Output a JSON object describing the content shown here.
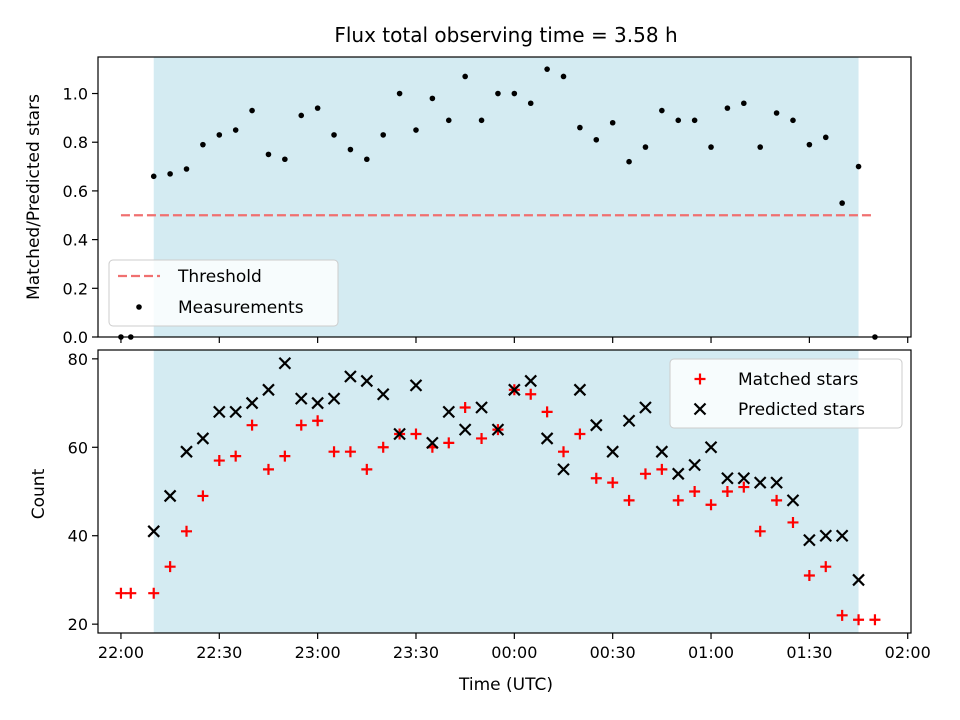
{
  "chart_data": [
    {
      "type": "scatter",
      "title": "Flux total observing time = 3.58 h",
      "ylabel": "Matched/Predicted stars",
      "ylim": [
        0,
        1.15
      ],
      "xlim": [
        "21:53",
        "02:01"
      ],
      "yticks": [
        "0.0",
        "0.2",
        "0.4",
        "0.6",
        "0.8",
        "1.0"
      ],
      "shaded_span": [
        "22:10",
        "01:45"
      ],
      "legend_position": "lower-left",
      "threshold": {
        "name": "Threshold",
        "value": 0.5,
        "x_range": [
          "22:00",
          "01:50"
        ],
        "color": "#f07070"
      },
      "series": [
        {
          "name": "Measurements",
          "color": "#000000",
          "x": [
            "22:00",
            "22:03",
            "22:10",
            "22:15",
            "22:20",
            "22:25",
            "22:30",
            "22:35",
            "22:40",
            "22:45",
            "22:50",
            "22:55",
            "23:00",
            "23:05",
            "23:10",
            "23:15",
            "23:20",
            "23:25",
            "23:30",
            "23:35",
            "23:40",
            "23:45",
            "23:50",
            "23:55",
            "00:00",
            "00:05",
            "00:10",
            "00:15",
            "00:20",
            "00:25",
            "00:30",
            "00:35",
            "00:40",
            "00:45",
            "00:50",
            "00:55",
            "01:00",
            "01:05",
            "01:10",
            "01:15",
            "01:20",
            "01:25",
            "01:30",
            "01:35",
            "01:40",
            "01:45",
            "01:50"
          ],
          "y": [
            0.0,
            0.0,
            0.66,
            0.67,
            0.69,
            0.79,
            0.83,
            0.85,
            0.93,
            0.75,
            0.73,
            0.91,
            0.94,
            0.83,
            0.77,
            0.73,
            0.83,
            1.0,
            0.85,
            0.98,
            0.89,
            1.07,
            0.89,
            1.0,
            1.0,
            0.96,
            1.1,
            1.07,
            0.86,
            0.81,
            0.88,
            0.72,
            0.78,
            0.93,
            0.89,
            0.89,
            0.78,
            0.94,
            0.96,
            0.78,
            0.92,
            0.89,
            0.79,
            0.82,
            0.55,
            0.7,
            0.0
          ]
        }
      ]
    },
    {
      "type": "scatter",
      "xlabel": "Time (UTC)",
      "ylabel": "Count",
      "ylim": [
        18,
        82
      ],
      "xlim": [
        "21:53",
        "02:01"
      ],
      "xticks": [
        "22:00",
        "22:30",
        "23:00",
        "23:30",
        "00:00",
        "00:30",
        "01:00",
        "01:30",
        "02:00"
      ],
      "yticks": [
        "20",
        "40",
        "60",
        "80"
      ],
      "shaded_span": [
        "22:10",
        "01:45"
      ],
      "legend_position": "top-right",
      "series": [
        {
          "name": "Matched stars",
          "marker": "plus",
          "color": "#ff0000",
          "x": [
            "22:00",
            "22:03",
            "22:10",
            "22:15",
            "22:20",
            "22:25",
            "22:30",
            "22:35",
            "22:40",
            "22:45",
            "22:50",
            "22:55",
            "23:00",
            "23:05",
            "23:10",
            "23:15",
            "23:20",
            "23:25",
            "23:30",
            "23:35",
            "23:40",
            "23:45",
            "23:50",
            "23:55",
            "00:00",
            "00:05",
            "00:10",
            "00:15",
            "00:20",
            "00:25",
            "00:30",
            "00:35",
            "00:40",
            "00:45",
            "00:50",
            "00:55",
            "01:00",
            "01:05",
            "01:10",
            "01:15",
            "01:20",
            "01:25",
            "01:30",
            "01:35",
            "01:40",
            "01:45",
            "01:50"
          ],
          "y": [
            27,
            27,
            27,
            33,
            41,
            49,
            57,
            58,
            65,
            55,
            58,
            65,
            66,
            59,
            59,
            55,
            60,
            63,
            63,
            60,
            61,
            69,
            62,
            64,
            73,
            72,
            68,
            59,
            63,
            53,
            52,
            48,
            54,
            55,
            48,
            50,
            47,
            50,
            51,
            41,
            48,
            43,
            31,
            33,
            22,
            21,
            21
          ]
        },
        {
          "name": "Predicted stars",
          "marker": "x",
          "color": "#000000",
          "x": [
            "22:10",
            "22:15",
            "22:20",
            "22:25",
            "22:30",
            "22:35",
            "22:40",
            "22:45",
            "22:50",
            "22:55",
            "23:00",
            "23:05",
            "23:10",
            "23:15",
            "23:20",
            "23:25",
            "23:30",
            "23:35",
            "23:40",
            "23:45",
            "23:50",
            "23:55",
            "00:00",
            "00:05",
            "00:10",
            "00:15",
            "00:20",
            "00:25",
            "00:30",
            "00:35",
            "00:40",
            "00:45",
            "00:50",
            "00:55",
            "01:00",
            "01:05",
            "01:10",
            "01:15",
            "01:20",
            "01:25",
            "01:30",
            "01:35",
            "01:40",
            "01:45"
          ],
          "y": [
            41,
            49,
            59,
            62,
            68,
            68,
            70,
            73,
            79,
            71,
            70,
            71,
            76,
            75,
            72,
            63,
            74,
            61,
            68,
            64,
            69,
            64,
            73,
            75,
            62,
            55,
            73,
            65,
            59,
            66,
            69,
            59,
            54,
            56,
            60,
            53,
            53,
            52,
            52,
            48,
            39,
            40,
            40,
            30
          ]
        }
      ]
    }
  ]
}
